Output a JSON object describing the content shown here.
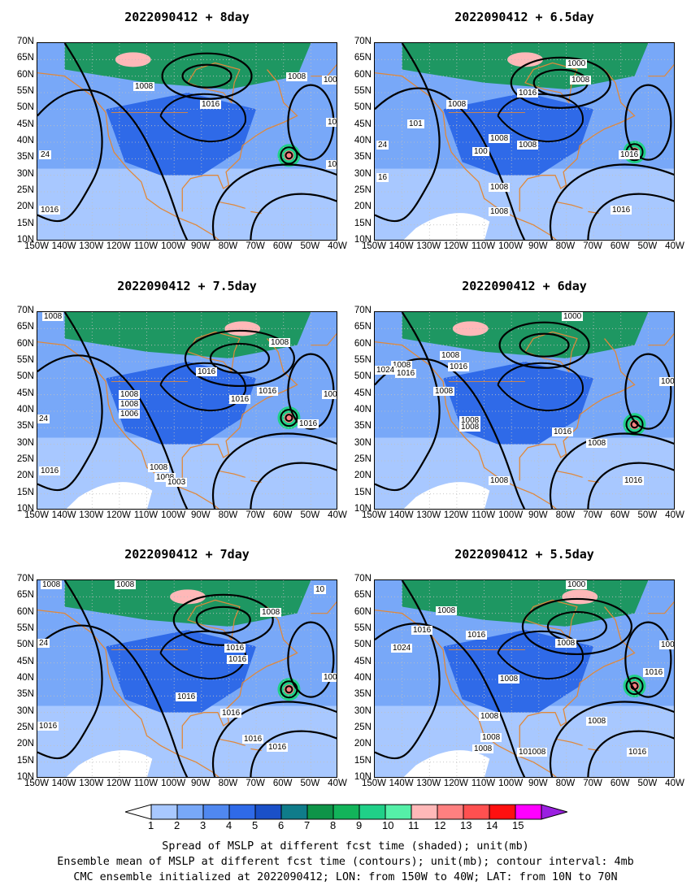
{
  "panels": [
    {
      "id": "p1",
      "title": "2022090412 + 8day",
      "labels": [
        "1008",
        "1008",
        "1016",
        "100",
        "100",
        "24",
        "1016",
        "10"
      ]
    },
    {
      "id": "p2",
      "title": "2022090412 + 6.5day",
      "labels": [
        "1000",
        "1008",
        "1016",
        "1008",
        "101",
        "1008",
        "1008",
        "100",
        "1016",
        "24",
        "16",
        "1008",
        "1008",
        "1016"
      ]
    },
    {
      "id": "p3",
      "title": "2022090412 + 7.5day",
      "labels": [
        "1008",
        "1008",
        "1016",
        "1008",
        "1008",
        "1016",
        "1016",
        "1006",
        "24",
        "100",
        "1016",
        "1016",
        "1008",
        "1008",
        "1003"
      ]
    },
    {
      "id": "p4",
      "title": "2022090412 + 6day",
      "labels": [
        "1000",
        "1008",
        "1016",
        "1008",
        "1016",
        "1024",
        "1008",
        "1008",
        "1008",
        "100",
        "1016",
        "1008",
        "1008",
        "1016"
      ]
    },
    {
      "id": "p5",
      "title": "2022090412 + 7day",
      "labels": [
        "1008",
        "1008",
        "10",
        "1008",
        "1016",
        "1016",
        "24",
        "100",
        "1016",
        "1016",
        "1016",
        "1016",
        "1016"
      ]
    },
    {
      "id": "p6",
      "title": "2022090412 + 5.5day",
      "labels": [
        "1000",
        "1008",
        "1016",
        "1016",
        "1008",
        "1024",
        "100",
        "1008",
        "1016",
        "1008",
        "1008",
        "1008",
        "1008",
        "1016",
        "101008"
      ]
    }
  ],
  "lat_ticks": [
    "70N",
    "65N",
    "60N",
    "55N",
    "50N",
    "45N",
    "40N",
    "35N",
    "30N",
    "25N",
    "20N",
    "15N",
    "10N"
  ],
  "lon_ticks": [
    "150W",
    "140W",
    "130W",
    "120W",
    "110W",
    "100W",
    "90W",
    "80W",
    "70W",
    "60W",
    "50W",
    "40W"
  ],
  "colorbar": {
    "values": [
      "1",
      "2",
      "3",
      "4",
      "5",
      "6",
      "7",
      "8",
      "9",
      "10",
      "11",
      "12",
      "13",
      "14",
      "15"
    ],
    "colors": [
      "#ffffff",
      "#a8c8ff",
      "#78a8f8",
      "#5088f0",
      "#2f6ae8",
      "#1a50c8",
      "#0f7c8a",
      "#0e9448",
      "#12b45a",
      "#20d088",
      "#55f0a8",
      "#ffb8b8",
      "#ff8080",
      "#ff5050",
      "#ff1010",
      "#ff00ff",
      "#9a20e0"
    ]
  },
  "captions": [
    "Spread of MSLP at different fcst time (shaded); unit(mb)",
    "Ensemble mean of MSLP at different fcst time (contours); unit(mb); contour interval: 4mb",
    "CMC ensemble initialized at 2022090412; LON: from 150W to 40W; LAT: from 10N to 70N"
  ],
  "map_colors": {
    "ocean": "#78a8f8",
    "tropics": "#a8c8ff",
    "land": "#2f6ae8",
    "arctic": "#0e9448",
    "hot": "#ff8080",
    "coast": "#e0883a",
    "contour": "#000000",
    "grid": "#c0c0c0"
  }
}
